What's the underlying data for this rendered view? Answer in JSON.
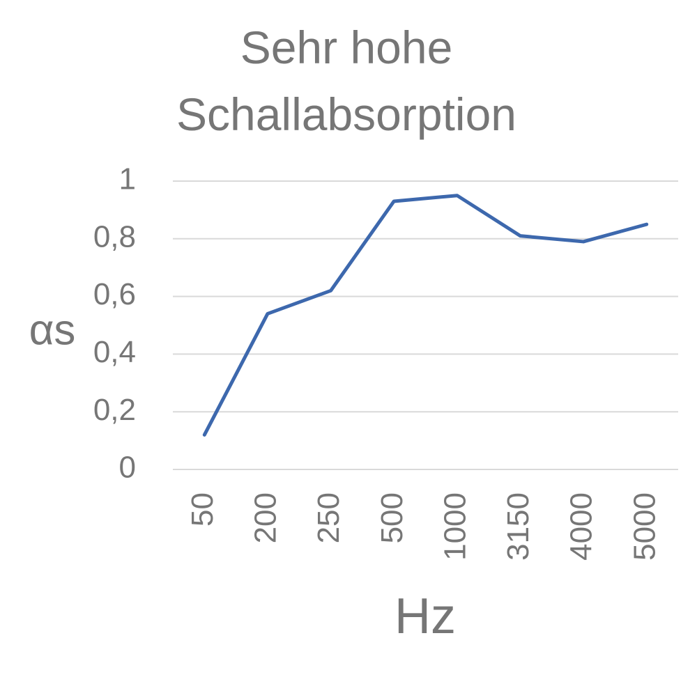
{
  "chart_data": {
    "type": "line",
    "title": "Sehr hohe Schallabsorption",
    "x_label": "Hz",
    "y_label": "αs",
    "categories": [
      "50",
      "200",
      "250",
      "500",
      "1000",
      "3150",
      "4000",
      "5000"
    ],
    "series": [
      {
        "name": "αs",
        "color": "#3d68ad",
        "values": [
          0.12,
          0.54,
          0.62,
          0.93,
          0.95,
          0.81,
          0.79,
          0.85
        ]
      }
    ],
    "ylim": [
      0,
      1
    ],
    "yticks": [
      0,
      {
        "value": 0.2,
        "label": "0,2"
      },
      {
        "value": 0.4,
        "label": "0,4"
      },
      {
        "value": 0.6,
        "label": "0,6"
      },
      {
        "value": 0.8,
        "label": "0,8"
      },
      1
    ],
    "grid": true,
    "legend": false
  }
}
